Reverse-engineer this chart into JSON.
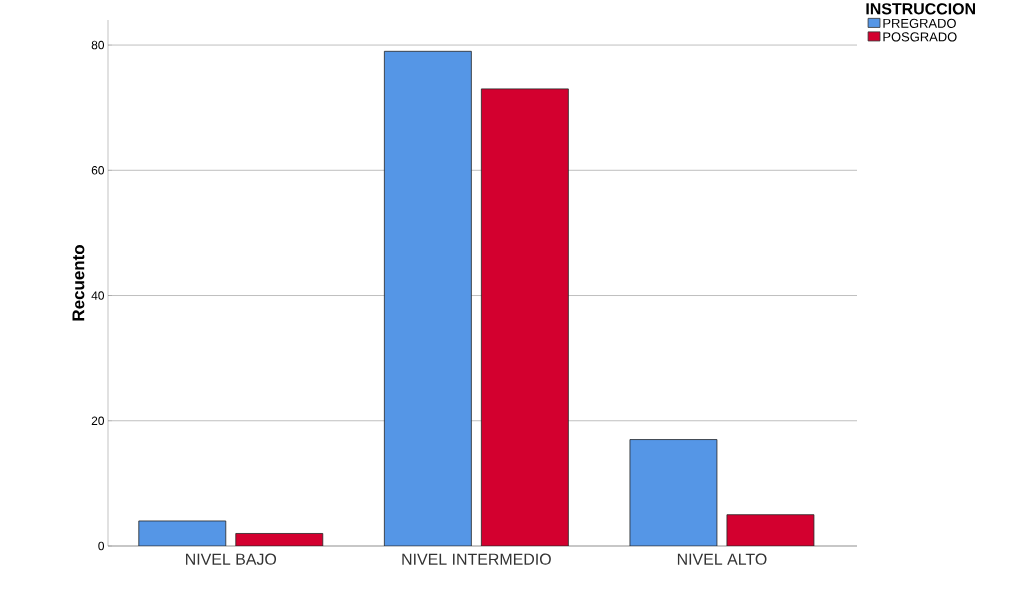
{
  "chart_data": {
    "type": "bar",
    "ylabel": "Recuento",
    "legend_title": "INSTRUCCION",
    "categories": [
      "NIVEL BAJO",
      "NIVEL INTERMEDIO",
      "NIVEL ALTO"
    ],
    "series": [
      {
        "name": "PREGRADO",
        "color": "#5596e6",
        "values": [
          4,
          79,
          17
        ]
      },
      {
        "name": "POSGRADO",
        "color": "#d3002f",
        "values": [
          2,
          73,
          5
        ]
      }
    ],
    "ylim": [
      0,
      84
    ],
    "yticks": [
      0,
      20,
      40,
      60,
      80
    ],
    "grid": "y",
    "legend": "top right"
  }
}
